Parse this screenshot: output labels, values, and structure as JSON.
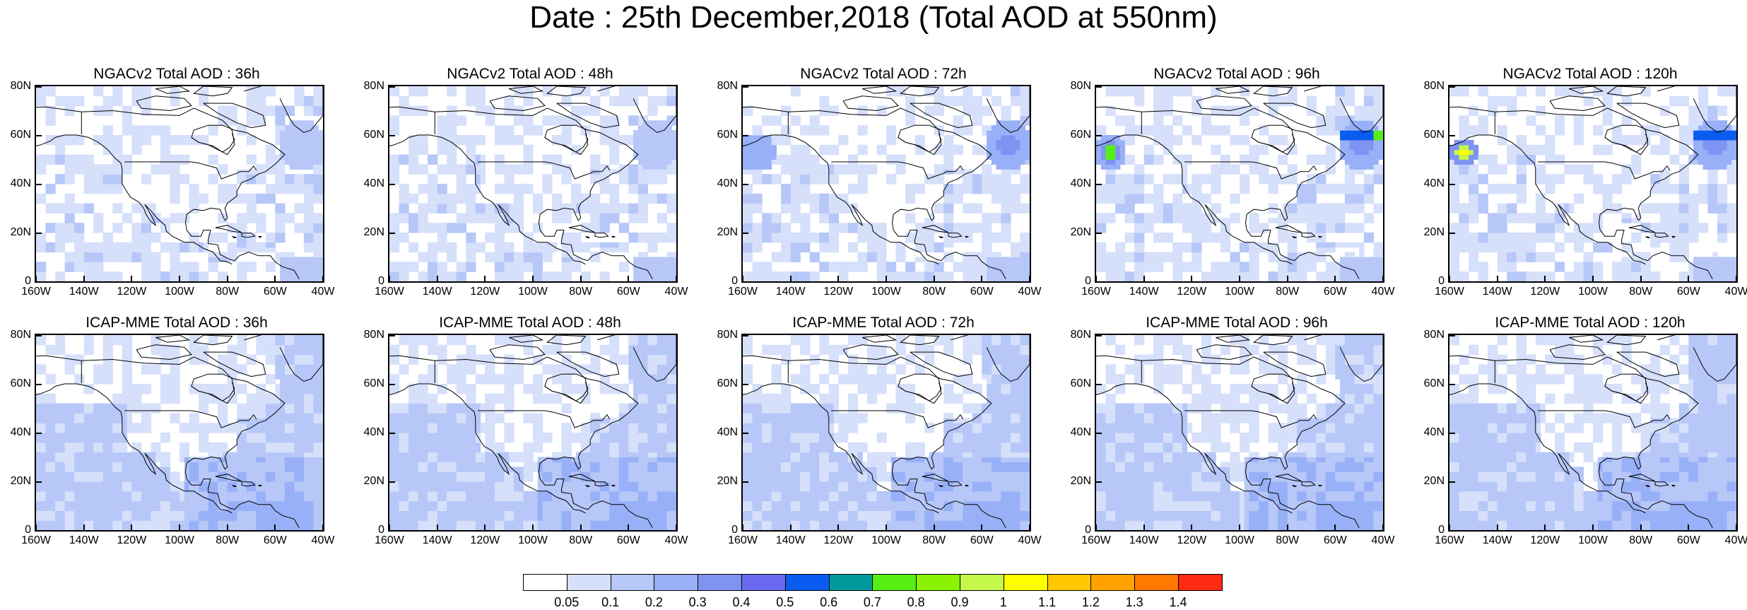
{
  "title": "Date : 25th December,2018 (Total AOD at 550nm)",
  "panels": [
    {
      "title": "NGACv2 Total AOD : 36h"
    },
    {
      "title": "NGACv2 Total AOD : 48h"
    },
    {
      "title": "NGACv2 Total AOD : 72h"
    },
    {
      "title": "NGACv2 Total AOD : 96h"
    },
    {
      "title": "NGACv2 Total AOD : 120h"
    },
    {
      "title": "ICAP-MME Total AOD : 36h"
    },
    {
      "title": "ICAP-MME Total AOD : 48h"
    },
    {
      "title": "ICAP-MME Total AOD : 72h"
    },
    {
      "title": "ICAP-MME Total AOD : 96h"
    },
    {
      "title": "ICAP-MME Total AOD : 120h"
    }
  ],
  "axes": {
    "lat_labels": [
      "80N",
      "60N",
      "40N",
      "20N",
      "0"
    ],
    "lon_labels": [
      "160W",
      "140W",
      "120W",
      "100W",
      "80W",
      "60W",
      "40W"
    ]
  },
  "colorbar": {
    "colors": [
      "#ffffff",
      "#d6e0fb",
      "#b6c7f8",
      "#98b0f7",
      "#7f93f2",
      "#6a6af0",
      "#0a5cf0",
      "#009a9a",
      "#56ef14",
      "#8af203",
      "#c4f84a",
      "#ffff00",
      "#ffc800",
      "#ffa200",
      "#ff7800",
      "#ff2a14"
    ],
    "labels": [
      "0.05",
      "0.1",
      "0.2",
      "0.3",
      "0.4",
      "0.5",
      "0.6",
      "0.7",
      "0.8",
      "0.9",
      "1",
      "1.1",
      "1.2",
      "1.3",
      "1.4"
    ]
  }
}
